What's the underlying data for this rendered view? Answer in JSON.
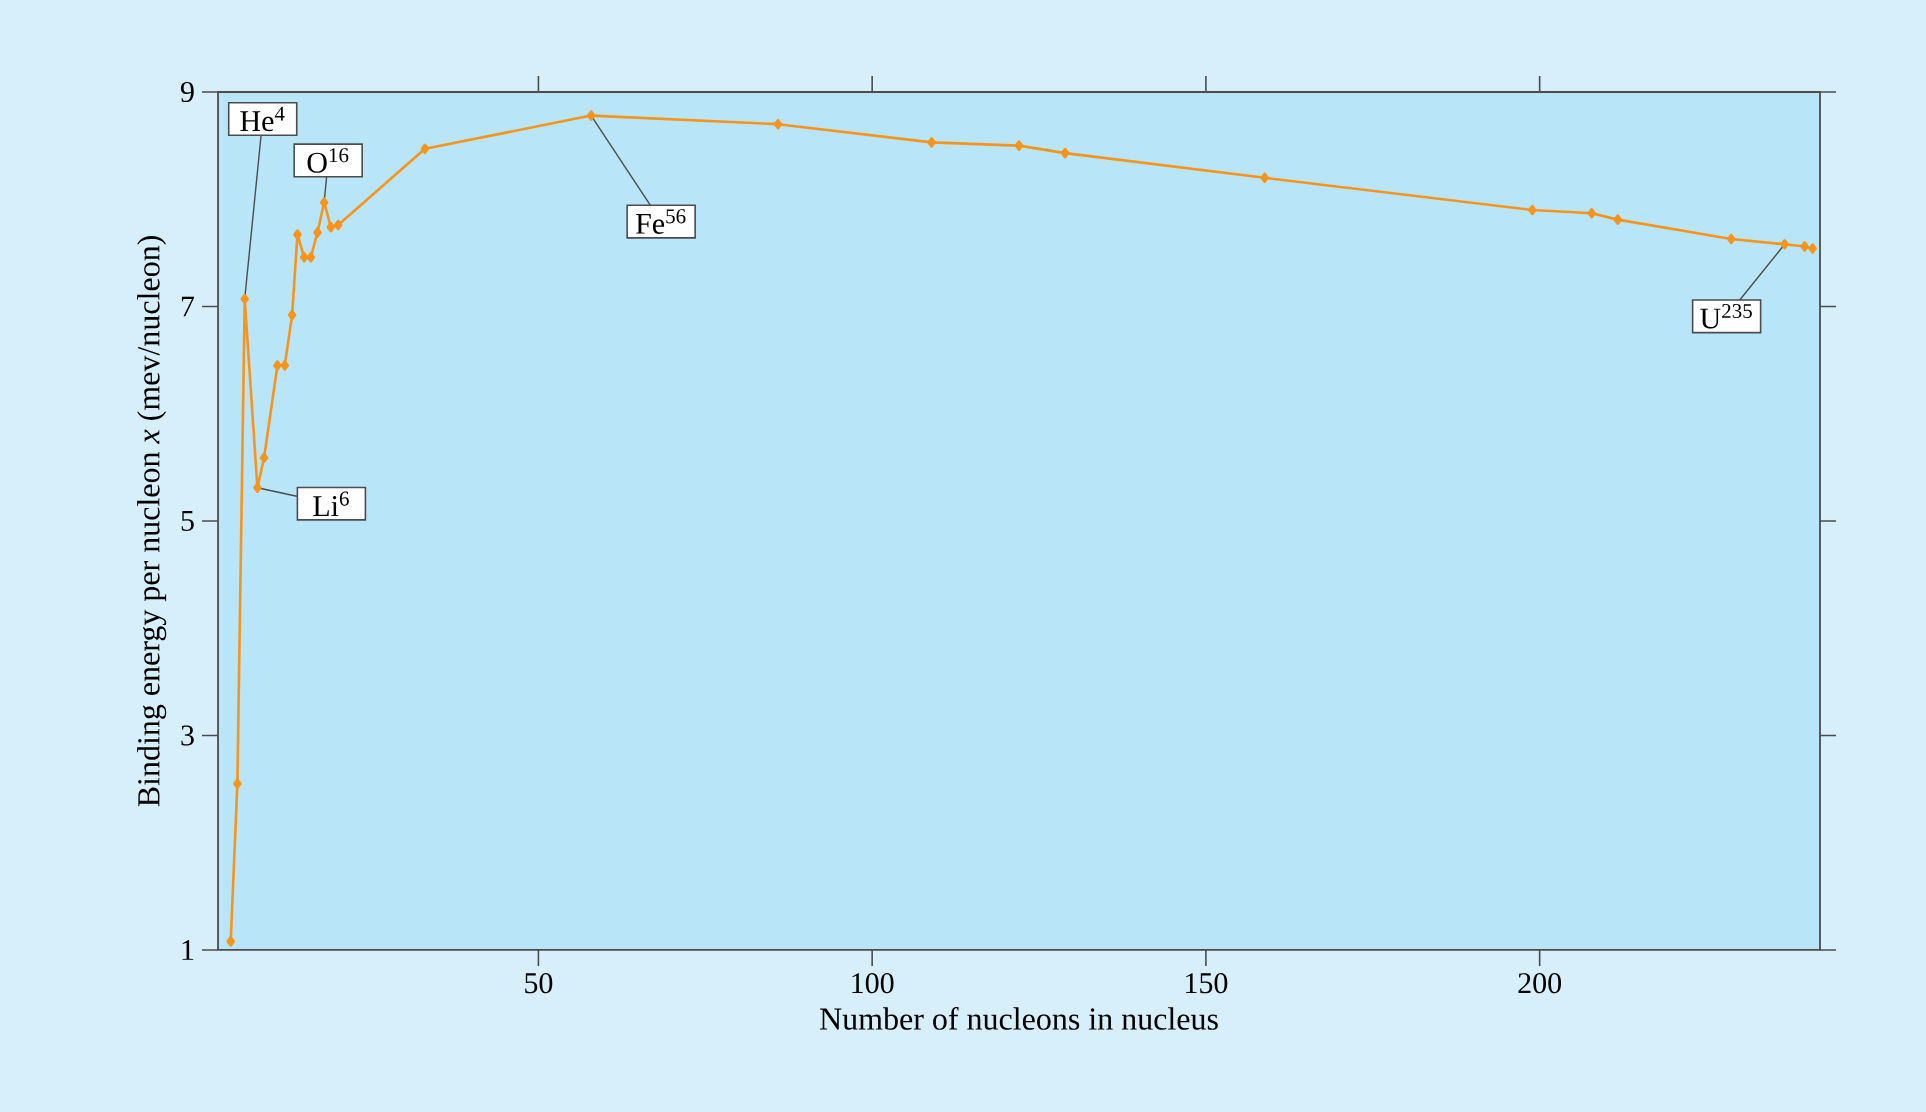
{
  "chart_data": {
    "type": "line",
    "xlabel": "Number of nucleons in nucleus",
    "ylabel": "Binding energy per nucleon *x* (mev/nucleon)",
    "x": [
      3.9,
      4.9,
      6.0,
      7.9,
      8.9,
      10.9,
      12.0,
      13.1,
      13.9,
      14.9,
      15.9,
      16.9,
      17.9,
      18.9,
      20.0,
      33.0,
      57.9,
      85.9,
      108.9,
      122.0,
      128.9,
      158.8,
      198.9,
      207.8,
      211.7,
      228.7,
      236.7,
      239.7,
      240.9
    ],
    "values": [
      1.08,
      2.55,
      7.07,
      5.31,
      5.59,
      6.45,
      6.45,
      6.92,
      7.67,
      7.46,
      7.46,
      7.69,
      7.97,
      7.74,
      7.76,
      8.47,
      8.78,
      8.7,
      8.53,
      8.5,
      8.43,
      8.2,
      7.9,
      7.87,
      7.81,
      7.63,
      7.58,
      7.56,
      7.54
    ],
    "color": "#f7941d",
    "marker": "diamond",
    "line_style": "solid",
    "xlim": [
      2,
      242
    ],
    "ylim": [
      1,
      9
    ],
    "xticks": [
      50,
      100,
      150,
      200
    ],
    "yticks": [
      1,
      3,
      5,
      7,
      9
    ],
    "annotations": [
      {
        "text": "He$^{4}$",
        "x": 6.0,
        "y": 7.07
      },
      {
        "text": "Li$^{6}$",
        "x": 7.9,
        "y": 5.31
      },
      {
        "text": "O$^{16}$",
        "x": 17.9,
        "y": 7.97
      },
      {
        "text": "Fe$^{56}$",
        "x": 57.9,
        "y": 8.78
      },
      {
        "text": "U$^{235}$",
        "x": 236.7,
        "y": 7.58
      }
    ]
  }
}
